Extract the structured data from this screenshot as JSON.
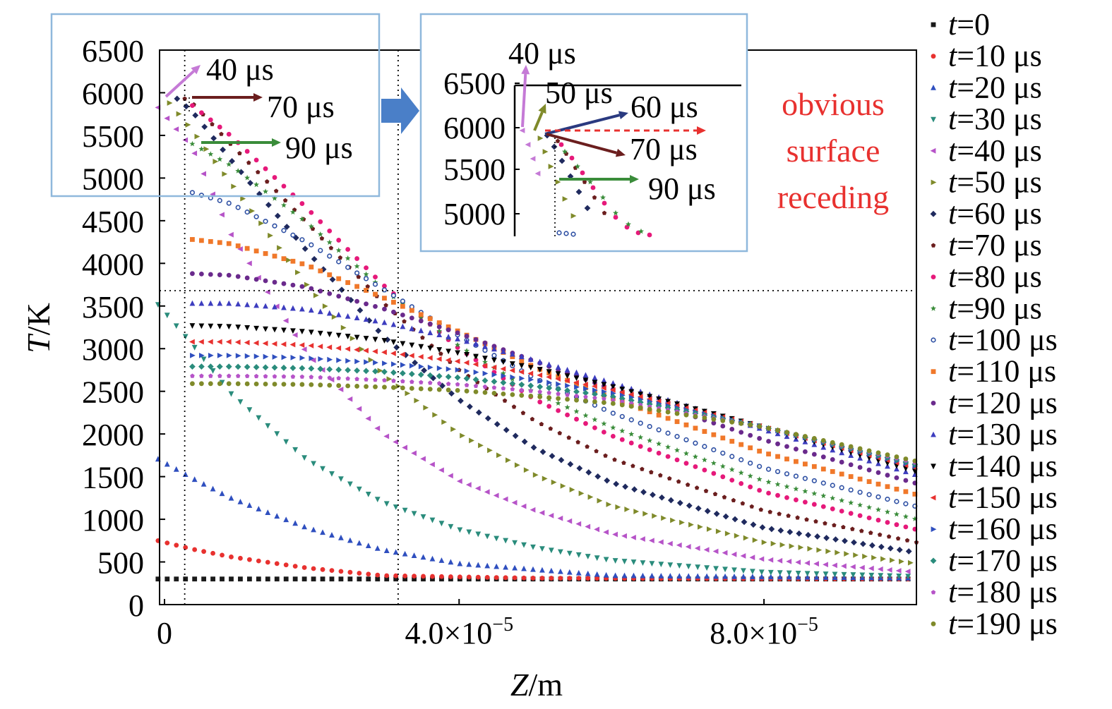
{
  "chart_data": {
    "type": "scatter",
    "xlabel_var": "Z",
    "xlabel_unit": "/m",
    "ylabel_var": "T",
    "ylabel_unit": "/K",
    "xlim": [
      0,
      0.0001
    ],
    "ylim": [
      0,
      6500
    ],
    "yticks": [
      "0",
      "500",
      "1000",
      "1500",
      "2000",
      "2500",
      "3000",
      "3500",
      "4000",
      "4500",
      "5000",
      "5500",
      "6000",
      "6500"
    ],
    "xticks": [
      {
        "value": 0,
        "mant": "0",
        "exp": ""
      },
      {
        "value": 4e-05,
        "mant": "4.0×10",
        "exp": "−5"
      },
      {
        "value": 8e-05,
        "mant": "8.0×10",
        "exp": "−5"
      }
    ],
    "reference_lines": {
      "vertical_x": [
        4e-06,
        3.2e-05
      ],
      "horizontal_y": 3680
    },
    "series": [
      {
        "name": "t=0",
        "var": "t",
        "rest": "=0",
        "color": "#1a1a1a",
        "marker": "square",
        "surface_z": 0,
        "values": [
          [
            0,
            300
          ],
          [
            3e-05,
            300
          ],
          [
            0.0001,
            300
          ]
        ]
      },
      {
        "name": "t=10 μs",
        "var": "t",
        "rest": "=10 μs",
        "color": "#e8312f",
        "marker": "circle",
        "surface_z": 0,
        "values": [
          [
            0,
            760
          ],
          [
            5e-06,
            650
          ],
          [
            1e-05,
            560
          ],
          [
            2e-05,
            430
          ],
          [
            3e-05,
            340
          ],
          [
            5e-05,
            310
          ],
          [
            0.0001,
            300
          ]
        ]
      },
      {
        "name": "t=20 μs",
        "var": "t",
        "rest": "=20 μs",
        "color": "#2f4fbf",
        "marker": "triangle-up",
        "surface_z": 0,
        "values": [
          [
            0,
            1730
          ],
          [
            5e-06,
            1480
          ],
          [
            1e-05,
            1250
          ],
          [
            2e-05,
            900
          ],
          [
            3e-05,
            640
          ],
          [
            4e-05,
            480
          ],
          [
            6e-05,
            340
          ],
          [
            0.0001,
            310
          ]
        ]
      },
      {
        "name": "t=30 μs",
        "var": "t",
        "rest": "=30 μs",
        "color": "#2a8c7c",
        "marker": "triangle-down",
        "surface_z": 0,
        "values": [
          [
            0,
            3570
          ],
          [
            5e-06,
            3050
          ],
          [
            1e-05,
            2480
          ],
          [
            2e-05,
            1700
          ],
          [
            3e-05,
            1200
          ],
          [
            4e-05,
            880
          ],
          [
            5e-05,
            670
          ],
          [
            6e-05,
            520
          ],
          [
            8e-05,
            380
          ],
          [
            0.0001,
            330
          ]
        ]
      },
      {
        "name": "t=40 μs",
        "var": "t",
        "rest": "=40 μs",
        "color": "#b653c8",
        "marker": "triangle-left",
        "surface_z": 0,
        "values": [
          [
            0,
            5880
          ],
          [
            5e-06,
            5350
          ],
          [
            1e-05,
            4350
          ],
          [
            2e-05,
            2950
          ],
          [
            3e-05,
            2000
          ],
          [
            4e-05,
            1450
          ],
          [
            5e-05,
            1100
          ],
          [
            6e-05,
            830
          ],
          [
            8e-05,
            530
          ],
          [
            0.0001,
            380
          ]
        ]
      },
      {
        "name": "t=50 μs",
        "var": "t",
        "rest": "=50 μs",
        "color": "#7f8a2a",
        "marker": "triangle-right",
        "surface_z": 2e-06,
        "values": [
          [
            2e-06,
            5880
          ],
          [
            5e-06,
            5560
          ],
          [
            1e-05,
            4950
          ],
          [
            2e-05,
            3750
          ],
          [
            3e-05,
            2700
          ],
          [
            4e-05,
            2000
          ],
          [
            5e-05,
            1520
          ],
          [
            6e-05,
            1160
          ],
          [
            8e-05,
            730
          ],
          [
            0.0001,
            480
          ]
        ]
      },
      {
        "name": "t=60 μs",
        "var": "t",
        "rest": "=60 μs",
        "color": "#1f2a5e",
        "marker": "diamond",
        "surface_z": 3e-06,
        "values": [
          [
            3e-06,
            5930
          ],
          [
            5e-06,
            5780
          ],
          [
            1e-05,
            5220
          ],
          [
            2e-05,
            4150
          ],
          [
            3e-05,
            3150
          ],
          [
            4e-05,
            2400
          ],
          [
            5e-05,
            1830
          ],
          [
            6e-05,
            1430
          ],
          [
            8e-05,
            900
          ],
          [
            0.0001,
            610
          ]
        ]
      },
      {
        "name": "t=70 μs",
        "var": "t",
        "rest": "=70 μs",
        "color": "#6b1e1e",
        "marker": "pentagon",
        "surface_z": 4e-06,
        "values": [
          [
            4e-06,
            5930
          ],
          [
            5e-06,
            5880
          ],
          [
            1e-05,
            5400
          ],
          [
            2e-05,
            4480
          ],
          [
            3e-05,
            3540
          ],
          [
            4e-05,
            2750
          ],
          [
            5e-05,
            2150
          ],
          [
            6e-05,
            1710
          ],
          [
            8e-05,
            1100
          ],
          [
            0.0001,
            730
          ]
        ]
      },
      {
        "name": "t=80 μs",
        "var": "t",
        "rest": "=80 μs",
        "color": "#e6197a",
        "marker": "circle",
        "surface_z": 5e-06,
        "values": [
          [
            5e-06,
            5850
          ],
          [
            1e-05,
            5500
          ],
          [
            2e-05,
            4650
          ],
          [
            3e-05,
            3750
          ],
          [
            4e-05,
            3000
          ],
          [
            5e-05,
            2400
          ],
          [
            6e-05,
            1980
          ],
          [
            8e-05,
            1320
          ],
          [
            0.0001,
            880
          ]
        ]
      },
      {
        "name": "t=90 μs",
        "var": "t",
        "rest": "=90 μs",
        "color": "#3a8c3a",
        "marker": "star",
        "surface_z": 5e-06,
        "values": [
          [
            5e-06,
            5400
          ],
          [
            1e-05,
            5150
          ],
          [
            2e-05,
            4480
          ],
          [
            3e-05,
            3700
          ],
          [
            4e-05,
            3030
          ],
          [
            5e-05,
            2480
          ],
          [
            6e-05,
            2080
          ],
          [
            8e-05,
            1450
          ],
          [
            0.0001,
            1000
          ]
        ]
      },
      {
        "name": "t=100 μs",
        "var": "t",
        "rest": "=100 μs",
        "color": "#2d4fa3",
        "marker": "circle-small",
        "surface_z": 5e-06,
        "values": [
          [
            5e-06,
            4830
          ],
          [
            1e-05,
            4700
          ],
          [
            2e-05,
            4250
          ],
          [
            3e-05,
            3700
          ],
          [
            4e-05,
            3150
          ],
          [
            5e-05,
            2650
          ],
          [
            6e-05,
            2250
          ],
          [
            8e-05,
            1600
          ],
          [
            0.0001,
            1150
          ]
        ]
      },
      {
        "name": "t=110 μs",
        "var": "t",
        "rest": "=110 μs",
        "color": "#f0782a",
        "marker": "square",
        "surface_z": 5e-06,
        "values": [
          [
            5e-06,
            4280
          ],
          [
            1e-05,
            4230
          ],
          [
            2e-05,
            3980
          ],
          [
            3e-05,
            3600
          ],
          [
            4e-05,
            3200
          ],
          [
            5e-05,
            2780
          ],
          [
            6e-05,
            2420
          ],
          [
            8e-05,
            1780
          ],
          [
            0.0001,
            1290
          ]
        ]
      },
      {
        "name": "t=120 μs",
        "var": "t",
        "rest": "=120 μs",
        "color": "#6a2a8c",
        "marker": "circle",
        "surface_z": 5e-06,
        "values": [
          [
            5e-06,
            3880
          ],
          [
            1e-05,
            3860
          ],
          [
            2e-05,
            3720
          ],
          [
            3e-05,
            3470
          ],
          [
            4e-05,
            3180
          ],
          [
            5e-05,
            2850
          ],
          [
            6e-05,
            2530
          ],
          [
            8e-05,
            1930
          ],
          [
            0.0001,
            1420
          ]
        ]
      },
      {
        "name": "t=130 μs",
        "var": "t",
        "rest": "=130 μs",
        "color": "#3d3dbf",
        "marker": "triangle-up",
        "surface_z": 5e-06,
        "values": [
          [
            5e-06,
            3530
          ],
          [
            1e-05,
            3530
          ],
          [
            2e-05,
            3460
          ],
          [
            3e-05,
            3310
          ],
          [
            4e-05,
            3110
          ],
          [
            5e-05,
            2860
          ],
          [
            6e-05,
            2600
          ],
          [
            8e-05,
            2050
          ],
          [
            0.0001,
            1520
          ]
        ]
      },
      {
        "name": "t=140 μs",
        "var": "t",
        "rest": "=140 μs",
        "color": "#000000",
        "marker": "triangle-down",
        "surface_z": 5e-06,
        "values": [
          [
            5e-06,
            3270
          ],
          [
            1e-05,
            3260
          ],
          [
            2e-05,
            3200
          ],
          [
            3e-05,
            3100
          ],
          [
            4e-05,
            2950
          ],
          [
            5e-05,
            2770
          ],
          [
            6e-05,
            2560
          ],
          [
            8e-05,
            2080
          ],
          [
            0.0001,
            1560
          ]
        ]
      },
      {
        "name": "t=150 μs",
        "var": "t",
        "rest": "=150 μs",
        "color": "#e8312f",
        "marker": "triangle-left",
        "surface_z": 5e-06,
        "values": [
          [
            5e-06,
            3080
          ],
          [
            1e-05,
            3080
          ],
          [
            2e-05,
            3040
          ],
          [
            3e-05,
            2960
          ],
          [
            4e-05,
            2850
          ],
          [
            5e-05,
            2700
          ],
          [
            6e-05,
            2520
          ],
          [
            8e-05,
            2080
          ],
          [
            0.0001,
            1600
          ]
        ]
      },
      {
        "name": "t=160 μs",
        "var": "t",
        "rest": "=160 μs",
        "color": "#2f4fbf",
        "marker": "triangle-right",
        "surface_z": 5e-06,
        "values": [
          [
            5e-06,
            2920
          ],
          [
            1e-05,
            2920
          ],
          [
            2e-05,
            2890
          ],
          [
            3e-05,
            2830
          ],
          [
            4e-05,
            2750
          ],
          [
            5e-05,
            2630
          ],
          [
            6e-05,
            2480
          ],
          [
            8e-05,
            2080
          ],
          [
            0.0001,
            1620
          ]
        ]
      },
      {
        "name": "t=170 μs",
        "var": "t",
        "rest": "=170 μs",
        "color": "#2a8c7c",
        "marker": "diamond",
        "surface_z": 5e-06,
        "values": [
          [
            5e-06,
            2790
          ],
          [
            1e-05,
            2790
          ],
          [
            2e-05,
            2770
          ],
          [
            3e-05,
            2730
          ],
          [
            4e-05,
            2660
          ],
          [
            5e-05,
            2560
          ],
          [
            6e-05,
            2440
          ],
          [
            8e-05,
            2080
          ],
          [
            0.0001,
            1640
          ]
        ]
      },
      {
        "name": "t=180 μs",
        "var": "t",
        "rest": "=180 μs",
        "color": "#b653c8",
        "marker": "pentagon",
        "surface_z": 5e-06,
        "values": [
          [
            5e-06,
            2680
          ],
          [
            1e-05,
            2680
          ],
          [
            2e-05,
            2670
          ],
          [
            3e-05,
            2630
          ],
          [
            4e-05,
            2580
          ],
          [
            5e-05,
            2500
          ],
          [
            6e-05,
            2400
          ],
          [
            8e-05,
            2080
          ],
          [
            0.0001,
            1660
          ]
        ]
      },
      {
        "name": "t=190 μs",
        "var": "t",
        "rest": "=190 μs",
        "color": "#7f8a2a",
        "marker": "circle",
        "surface_z": 5e-06,
        "values": [
          [
            5e-06,
            2590
          ],
          [
            1e-05,
            2590
          ],
          [
            2e-05,
            2580
          ],
          [
            3e-05,
            2550
          ],
          [
            4e-05,
            2510
          ],
          [
            5e-05,
            2440
          ],
          [
            6e-05,
            2360
          ],
          [
            8e-05,
            2080
          ],
          [
            0.0001,
            1680
          ]
        ]
      }
    ],
    "annotations": {
      "left_box": {
        "labels": [
          {
            "text": "40 μs",
            "color": "#c57ad6"
          },
          {
            "text": "70 μs",
            "color": "#6b1e1e"
          },
          {
            "text": "90 μs",
            "color": "#3a8c3a"
          }
        ]
      },
      "inset": {
        "yticks": [
          "5000",
          "5500",
          "6000",
          "6500"
        ],
        "labels": [
          {
            "text": "40 μs",
            "color": "#c57ad6"
          },
          {
            "text": "50 μs",
            "color": "#7f8a2a"
          },
          {
            "text": "60 μs",
            "color": "#2a3a80"
          },
          {
            "text": "70 μs",
            "color": "#6b1e1e"
          },
          {
            "text": "90 μs",
            "color": "#3a8c3a"
          }
        ]
      },
      "note_lines": [
        "obvious",
        "surface",
        "receding"
      ],
      "note_color": "#e8312f"
    }
  }
}
